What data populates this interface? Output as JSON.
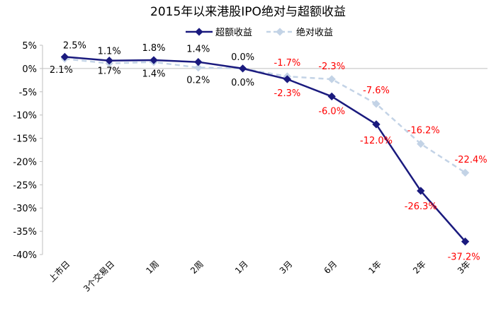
{
  "chart_data": {
    "type": "line",
    "title": "2015年以来港股IPO绝对与超额收益",
    "categories": [
      "上市日",
      "3个交易日",
      "1周",
      "2周",
      "1月",
      "3月",
      "6月",
      "1年",
      "2年",
      "3年"
    ],
    "series": [
      {
        "name": "超额收益",
        "values": [
          2.5,
          1.7,
          1.8,
          1.4,
          0.0,
          -2.3,
          -6.0,
          -12.0,
          -26.3,
          -37.2
        ],
        "labels": [
          "2.5%",
          "1.7%",
          "1.8%",
          "1.4%",
          "0.0%",
          "-2.3%",
          "-6.0%",
          "-12.0%",
          "-26.3%",
          "-37.2%"
        ],
        "color": "#1a1a7e",
        "marker": "diamond",
        "line_style": "solid"
      },
      {
        "name": "绝对收益",
        "values": [
          2.1,
          1.1,
          1.4,
          0.2,
          0.0,
          -1.7,
          -2.3,
          -7.6,
          -16.2,
          -22.4
        ],
        "labels": [
          "2.1%",
          "1.1%",
          "1.4%",
          "0.2%",
          "0.0%",
          "-1.7%",
          "-2.3%",
          "-7.6%",
          "-16.2%",
          "-22.4%"
        ],
        "color": "#c3d3e6",
        "marker": "diamond",
        "line_style": "dashed"
      }
    ],
    "y_ticks": [
      "5%",
      "0%",
      "-5%",
      "-10%",
      "-15%",
      "-20%",
      "-25%",
      "-30%",
      "-35%",
      "-40%"
    ],
    "ylim": [
      -40,
      5
    ],
    "xlabel": "",
    "ylabel": "",
    "grid": false,
    "legend_position": "top-right",
    "label_colors": {
      "positive": "#000000",
      "negative": "#ff0000"
    }
  }
}
